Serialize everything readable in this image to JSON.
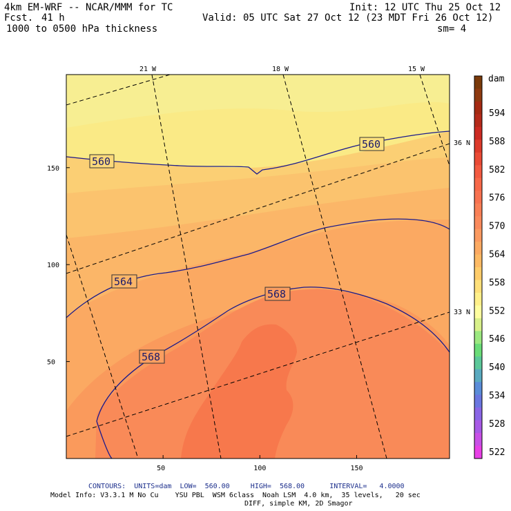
{
  "header": {
    "model_line": "4km EM-WRF -- NCAR/MMM for TC",
    "forecast_label": "Fcst.",
    "forecast_hours": "41 h",
    "field": "1000 to 0500 hPa thickness",
    "init": "Init: 12 UTC Thu 25 Oct 12",
    "valid": "Valid: 05 UTC Sat 27 Oct 12 (23 MDT Fri 26 Oct 12)",
    "smoothing": "sm= 4"
  },
  "map": {
    "lon_labels": [
      "21 W",
      "18 W",
      "15 W"
    ],
    "lat_labels": [
      "36 N",
      "33 N"
    ],
    "x_ticks": [
      50,
      100,
      150
    ],
    "y_ticks": [
      50,
      100,
      150
    ],
    "x_range": [
      0,
      198
    ],
    "y_range": [
      0,
      198
    ],
    "contour_labels": [
      {
        "text": "560"
      },
      {
        "text": "560"
      },
      {
        "text": "564"
      },
      {
        "text": "568"
      },
      {
        "text": "568"
      }
    ]
  },
  "colorbar": {
    "unit": "dam",
    "labels": [
      "594",
      "588",
      "582",
      "576",
      "570",
      "564",
      "558",
      "552",
      "546",
      "540",
      "534",
      "528",
      "522"
    ],
    "colors": [
      "#7a3a0a",
      "#8e3a10",
      "#a52a12",
      "#b52a1a",
      "#cc2a22",
      "#dc3a2a",
      "#ea4a35",
      "#f35a40",
      "#f76848",
      "#f87250",
      "#f98056",
      "#fa8a5c",
      "#fb9a60",
      "#fcaa62",
      "#fdba64",
      "#fecc6a",
      "#fee07a",
      "#fff08a",
      "#fefea0",
      "#d8f08a",
      "#9ce880",
      "#6adc78",
      "#5cc89a",
      "#5aaac0",
      "#5a8cd8",
      "#6a76e0",
      "#8a66e6",
      "#a85ae6",
      "#c850e6",
      "#e840e6"
    ]
  },
  "footer": {
    "contours": "CONTOURS:  UNITS=dam  LOW=  560.00     HIGH=  568.00      INTERVAL=   4.0000",
    "model_info": "Model Info: V3.3.1 M No Cu    YSU PBL  WSM 6class  Noah LSM  4.0 km,  35 levels,   20 sec",
    "diff": "DIFF, simple KM, 2D Smagor"
  }
}
